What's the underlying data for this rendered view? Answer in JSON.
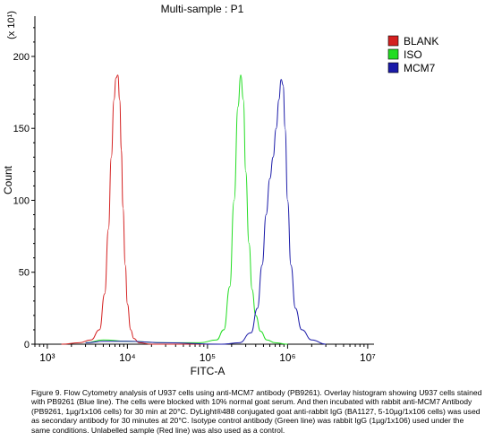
{
  "chart_data": {
    "type": "line",
    "title": "Multi-sample : P1",
    "xlabel": "FITC-A",
    "ylabel": "Count",
    "y_multiplier": "(x 10¹)",
    "x_scale": "log",
    "xlim": [
      700,
      12000000
    ],
    "ylim": [
      0,
      228
    ],
    "x_ticks": [
      1000,
      10000,
      100000,
      1000000,
      10000000
    ],
    "x_tick_labels": [
      "10³",
      "10⁴",
      "10⁵",
      "10⁶",
      "10⁷"
    ],
    "y_ticks": [
      0,
      50,
      100,
      150,
      200
    ],
    "y_tick_labels": [
      "0",
      "50",
      "100",
      "150",
      "200"
    ],
    "legend_position": "top-right",
    "series": [
      {
        "name": "BLANK",
        "color": "#d42020",
        "x": [
          1500,
          2500,
          3500,
          4500,
          5200,
          5800,
          6300,
          6800,
          7200,
          7600,
          8000,
          8400,
          8800,
          9400,
          10000,
          11000,
          12000,
          14000,
          20000,
          50000,
          100000
        ],
        "y": [
          0,
          1,
          3,
          10,
          35,
          80,
          130,
          170,
          185,
          187,
          170,
          135,
          95,
          55,
          28,
          10,
          4,
          1,
          0,
          0,
          0
        ]
      },
      {
        "name": "ISO",
        "color": "#22dd22",
        "x": [
          3000,
          5000,
          10000,
          30000,
          80000,
          130000,
          160000,
          190000,
          215000,
          240000,
          260000,
          280000,
          300000,
          330000,
          360000,
          400000,
          460000,
          550000,
          700000,
          1000000
        ],
        "y": [
          1,
          3,
          2,
          1,
          1,
          3,
          10,
          40,
          100,
          165,
          187,
          170,
          120,
          70,
          38,
          20,
          9,
          3,
          1,
          0
        ]
      },
      {
        "name": "MCM7",
        "color": "#1a1aa8",
        "x": [
          3000,
          5000,
          10000,
          30000,
          150000,
          250000,
          350000,
          420000,
          480000,
          540000,
          600000,
          660000,
          720000,
          780000,
          830000,
          880000,
          930000,
          1000000,
          1100000,
          1250000,
          1500000,
          2000000,
          3000000
        ],
        "y": [
          1,
          2,
          2,
          1,
          0,
          1,
          8,
          25,
          55,
          90,
          115,
          130,
          150,
          170,
          184,
          180,
          150,
          100,
          55,
          25,
          10,
          3,
          0
        ]
      }
    ]
  },
  "caption": "Figure 9. Flow Cytometry analysis of U937 cells using anti-MCM7 antibody (PB9261). Overlay histogram showing U937 cells stained with PB9261 (Blue line). The cells were blocked with 10% normal goat serum. And then incubated with rabbit anti-MCM7 Antibody (PB9261, 1µg/1x106 cells) for 30 min at 20°C. DyLight®488 conjugated goat anti-rabbit IgG (BA1127, 5-10µg/1x106 cells) was used as secondary antibody for 30 minutes at 20°C. Isotype control antibody (Green line) was rabbit IgG (1µg/1x106) used under the same conditions. Unlabelled sample (Red line) was also used as a control."
}
